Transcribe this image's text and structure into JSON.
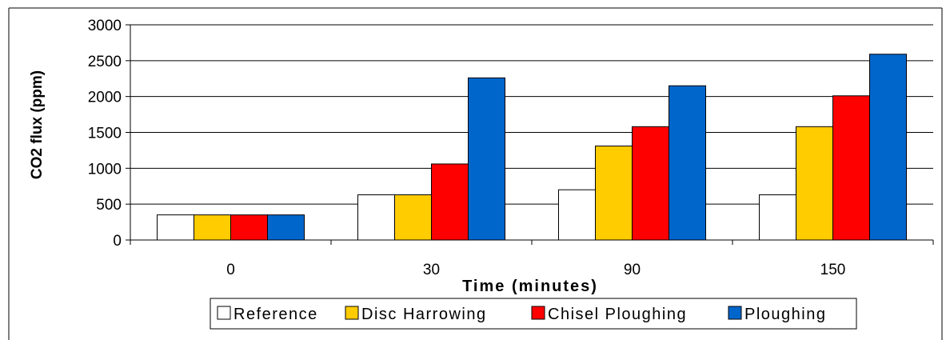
{
  "chart_data": {
    "type": "bar",
    "title": "",
    "xlabel": "Time (minutes)",
    "ylabel": "CO2 flux (ppm)",
    "categories": [
      "0",
      "30",
      "90",
      "150"
    ],
    "ylim": [
      0,
      3000
    ],
    "yticks": [
      0,
      500,
      1000,
      1500,
      2000,
      2500,
      3000
    ],
    "grid": true,
    "legend_position": "bottom",
    "series": [
      {
        "name": "Reference",
        "color": "#ffffff",
        "values": [
          350,
          630,
          700,
          630
        ]
      },
      {
        "name": "Disc Harrowing",
        "color": "#ffcc00",
        "values": [
          350,
          630,
          1310,
          1580
        ]
      },
      {
        "name": "Chisel Ploughing",
        "color": "#ff0000",
        "values": [
          350,
          1060,
          1580,
          2010
        ]
      },
      {
        "name": "Ploughing",
        "color": "#0066cc",
        "values": [
          350,
          2260,
          2150,
          2590
        ]
      }
    ]
  }
}
